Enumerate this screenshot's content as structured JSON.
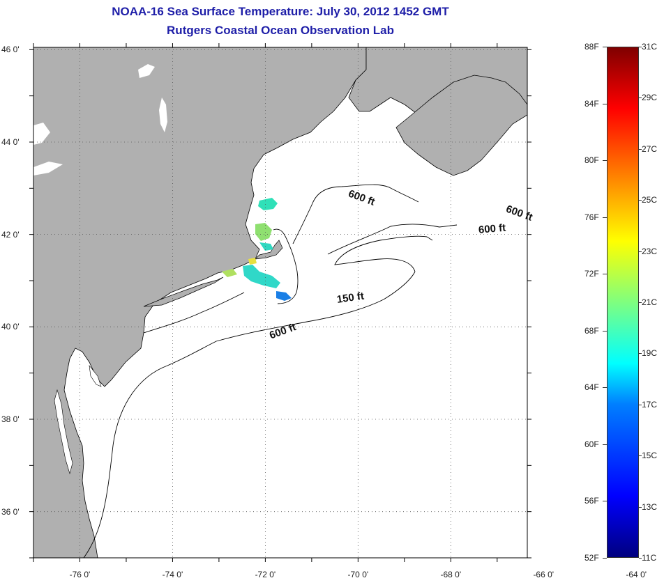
{
  "header": {
    "title": "NOAA-16 Sea Surface Temperature:  July 30, 2012 1452 GMT",
    "subtitle": "Rutgers Coastal Ocean Observation Lab"
  },
  "map": {
    "lat_labels": [
      "46 0'",
      "44 0'",
      "42 0'",
      "40 0'",
      "38 0'",
      "36 0'"
    ],
    "lat_values": [
      46,
      44,
      42,
      40,
      38,
      36
    ],
    "lon_labels": [
      "-76 0'",
      "-74 0'",
      "-72 0'",
      "-70 0'",
      "-68 0'",
      "-66 0'",
      "-64 0'"
    ],
    "lon_values": [
      -76,
      -74,
      -72,
      -70,
      -68,
      -66,
      -64
    ],
    "lat_range": [
      35,
      46.05
    ],
    "lon_range": [
      -77,
      -66.35
    ],
    "land_color": "#b0b0b0",
    "ocean_color": "#ffffff",
    "gridlines": true,
    "contour_labels": [
      {
        "text": "600 ft",
        "lon": -70.2,
        "lat": 42.88
      },
      {
        "text": "600 ft",
        "lon": -66.8,
        "lat": 42.55
      },
      {
        "text": "600 ft",
        "lon": -67.4,
        "lat": 42.08
      },
      {
        "text": "150 ft",
        "lon": -70.45,
        "lat": 40.58
      },
      {
        "text": "600 ft",
        "lon": -71.9,
        "lat": 39.8
      }
    ]
  },
  "colorbar": {
    "fahrenheit_labels": [
      "88F",
      "84F",
      "80F",
      "76F",
      "72F",
      "68F",
      "64F",
      "60F",
      "56F",
      "52F"
    ],
    "celsius_labels": [
      "31C",
      "29C",
      "27C",
      "25C",
      "23C",
      "21C",
      "19C",
      "17C",
      "15C",
      "13C",
      "11C"
    ],
    "range_f": [
      52,
      88
    ],
    "range_c": [
      11,
      31
    ],
    "scale": "jet"
  }
}
